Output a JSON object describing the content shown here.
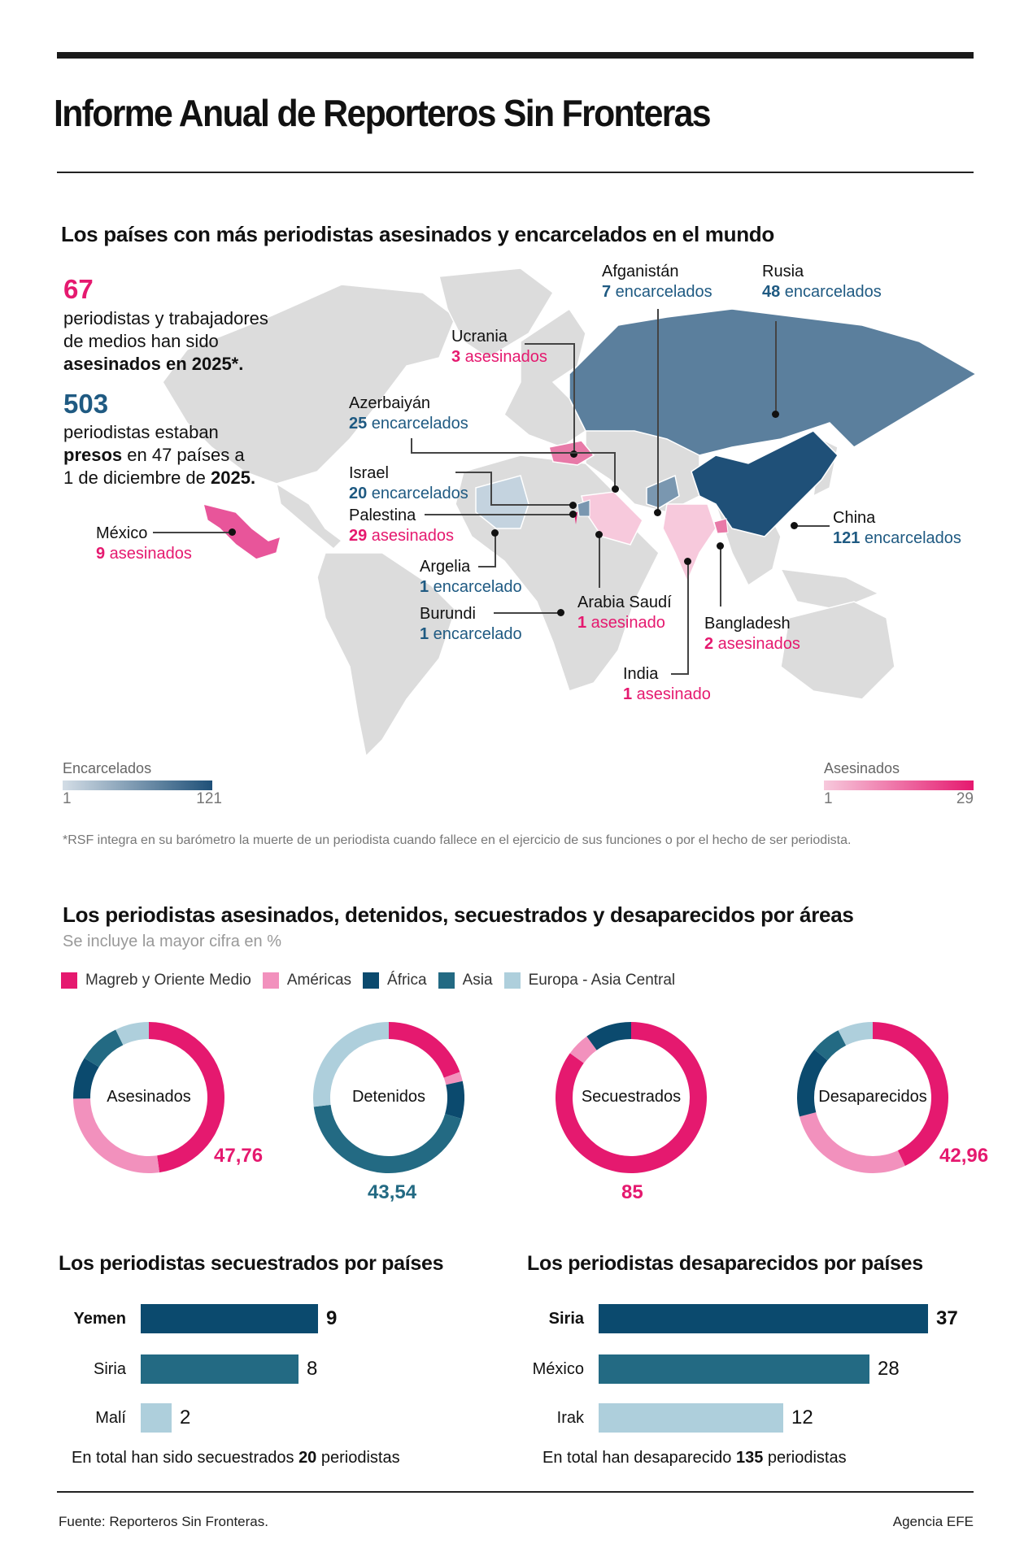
{
  "header": {
    "title": "Informe Anual de Reporteros Sin Fronteras"
  },
  "map_section": {
    "title": "Los países con más periodistas asesinados y encarcelados en el mundo",
    "killed_stat": {
      "number": "67",
      "line1": "periodistas y trabajadores",
      "line2": "de medios han sido",
      "line3_bold": "asesinados en 2025*."
    },
    "jailed_stat": {
      "number": "503",
      "line1": "periodistas estaban",
      "line2_bold": "presos",
      "line2_rest": " en 47 países a",
      "line3_pre": "1 de diciembre de ",
      "line3_bold": "2025."
    },
    "countries": [
      {
        "name": "Afganistán",
        "value": "7",
        "unit": " encarcelados",
        "type": "jailed"
      },
      {
        "name": "Rusia",
        "value": "48",
        "unit": " encarcelados",
        "type": "jailed"
      },
      {
        "name": "Ucrania",
        "value": "3",
        "unit": " asesinados",
        "type": "killed"
      },
      {
        "name": "Azerbaiyán",
        "value": "25",
        "unit": " encarcelados",
        "type": "jailed"
      },
      {
        "name": "Israel",
        "value": "20",
        "unit": " encarcelados",
        "type": "jailed"
      },
      {
        "name": "Palestina",
        "value": "29",
        "unit": " asesinados",
        "type": "killed"
      },
      {
        "name": "México",
        "value": "9",
        "unit": " asesinados",
        "type": "killed"
      },
      {
        "name": "China",
        "value": "121",
        "unit": " encarcelados",
        "type": "jailed"
      },
      {
        "name": "Argelia",
        "value": "1",
        "unit": " encarcelado",
        "type": "jailed"
      },
      {
        "name": "Burundi",
        "value": "1",
        "unit": " encarcelado",
        "type": "jailed"
      },
      {
        "name": "Arabia Saudí",
        "value": "1",
        "unit": " asesinado",
        "type": "killed"
      },
      {
        "name": "Bangladesh",
        "value": "2",
        "unit": " asesinados",
        "type": "killed"
      },
      {
        "name": "India",
        "value": "1",
        "unit": " asesinado",
        "type": "killed"
      }
    ],
    "legend_jailed": {
      "title": "Encarcelados",
      "min": "1",
      "max": "121",
      "color_min": "#d3dde6",
      "color_max": "#1f5078"
    },
    "legend_killed": {
      "title": "Asesinados",
      "min": "1",
      "max": "29",
      "color_min": "#f7c9dc",
      "color_max": "#e5196f"
    },
    "footnote": "*RSF integra en su barómetro la muerte de un periodista cuando fallece en el ejercicio de sus funciones o por el hecho de ser periodista."
  },
  "areas_section": {
    "title": "Los periodistas asesinados, detenidos, secuestrados y desaparecidos por áreas",
    "subtitle": "Se incluye la mayor cifra en %",
    "legend": [
      {
        "label": "Magreb y Oriente Medio",
        "color": "#e5196f"
      },
      {
        "label": "Américas",
        "color": "#f291bd"
      },
      {
        "label": "África",
        "color": "#0b4a6e"
      },
      {
        "label": "Asia",
        "color": "#236a83"
      },
      {
        "label": "Europa - Asia Central",
        "color": "#aecfdc"
      }
    ]
  },
  "chart_data": [
    {
      "type": "pie",
      "title": "Asesinados",
      "categories": [
        "Magreb y Oriente Medio",
        "Américas",
        "África",
        "Asia",
        "Europa - Asia Central"
      ],
      "values": [
        47.76,
        27,
        9,
        9,
        7.24
      ],
      "highlight_label": "47,76",
      "highlight_color": "#e5196f"
    },
    {
      "type": "pie",
      "title": "Detenidos",
      "categories": [
        "Magreb y Oriente Medio",
        "Américas",
        "África",
        "Asia",
        "Europa - Asia Central"
      ],
      "values": [
        19.5,
        2,
        8,
        43.54,
        26.96
      ],
      "highlight_label": "43,54",
      "highlight_color": "#236a83"
    },
    {
      "type": "pie",
      "title": "Secuestrados",
      "categories": [
        "Magreb y Oriente Medio",
        "Américas",
        "África",
        "Asia",
        "Europa - Asia Central"
      ],
      "values": [
        85,
        5,
        10,
        0,
        0
      ],
      "highlight_label": "85",
      "highlight_color": "#e5196f"
    },
    {
      "type": "pie",
      "title": "Desaparecidos",
      "categories": [
        "Magreb y Oriente Medio",
        "Américas",
        "África",
        "Asia",
        "Europa - Asia Central"
      ],
      "values": [
        42.96,
        28,
        15,
        6.5,
        7.54
      ],
      "highlight_label": "42,96",
      "highlight_color": "#e5196f"
    },
    {
      "type": "bar",
      "title": "Los periodistas secuestrados por países",
      "categories": [
        "Yemen",
        "Siria",
        "Malí"
      ],
      "values": [
        9,
        8,
        2
      ],
      "colors": [
        "#0b4a6e",
        "#236a83",
        "#aecfdc"
      ],
      "note": "En total han sido secuestrados 20 periodistas"
    },
    {
      "type": "bar",
      "title": "Los periodistas desaparecidos por países",
      "categories": [
        "Siria",
        "México",
        "Irak"
      ],
      "values": [
        37,
        28,
        12
      ],
      "colors": [
        "#0b4a6e",
        "#236a83",
        "#aecfdc"
      ],
      "note": "En total han desaparecido 135 periodistas"
    }
  ],
  "kidnapped": {
    "title": "Los periodistas secuestrados por países",
    "rows": [
      {
        "name": "Yemen",
        "value": "9"
      },
      {
        "name": "Siria",
        "value": "8"
      },
      {
        "name": "Malí",
        "value": "2"
      }
    ],
    "total_pre": "En total han sido secuestrados ",
    "total_num": "20",
    "total_post": " periodistas"
  },
  "missing": {
    "title": "Los periodistas desaparecidos por países",
    "rows": [
      {
        "name": "Siria",
        "value": "37"
      },
      {
        "name": "México",
        "value": "28"
      },
      {
        "name": "Irak",
        "value": "12"
      }
    ],
    "total_pre": "En total han desaparecido ",
    "total_num": "135",
    "total_post": " periodistas"
  },
  "footer": {
    "source": "Fuente: Reporteros Sin Fronteras.",
    "credit": "Agencia EFE"
  }
}
